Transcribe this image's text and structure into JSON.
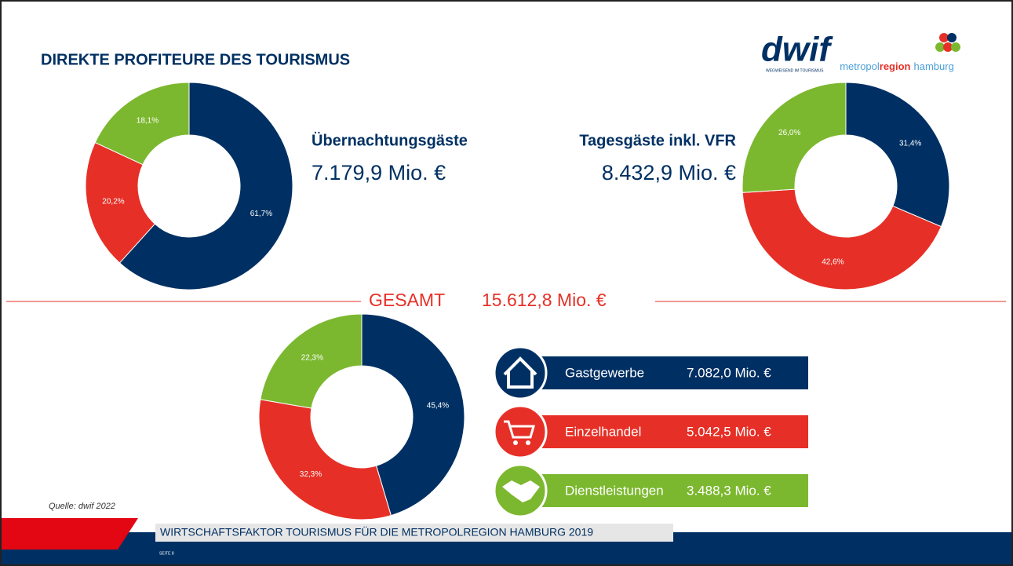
{
  "header": {
    "title": "DIREKTE PROFITEURE DES TOURISMUS",
    "logo_text": "dwif",
    "logo_tagline": "WEGWEISEND IM TOURISMUS",
    "partner_logo": [
      "metropol",
      "region",
      "hamburg"
    ]
  },
  "chart_data": [
    {
      "type": "donut",
      "title": "Übernachtungsgäste",
      "subtitle": "7.179,9 Mio. €",
      "values": [
        61.7,
        20.2,
        18.1
      ],
      "value_labels": [
        "61,7%",
        "20,2%",
        "18,1%"
      ],
      "colors": [
        "#003063",
        "#e63027",
        "#7cb82f"
      ]
    },
    {
      "type": "donut",
      "title": "Tagesgäste inkl. VFR",
      "subtitle": "8.432,9 Mio. €",
      "values": [
        31.4,
        42.6,
        26.0
      ],
      "value_labels": [
        "31,4%",
        "42,6%",
        "26,0%"
      ],
      "colors": [
        "#003063",
        "#e63027",
        "#7cb82f"
      ]
    },
    {
      "type": "donut",
      "title": "GESAMT",
      "subtitle": "15.612,8 Mio. €",
      "values": [
        45.4,
        32.3,
        22.3
      ],
      "value_labels": [
        "45,4%",
        "32,3%",
        "22,3%"
      ],
      "colors": [
        "#003063",
        "#e63027",
        "#7cb82f"
      ]
    }
  ],
  "legend": {
    "items": [
      {
        "name": "Gastgewerbe",
        "amount": "7.082,0 Mio. €"
      },
      {
        "name": "Einzelhandel",
        "amount": "5.042,5 Mio. €"
      },
      {
        "name": "Dienstleistungen",
        "amount": "3.488,3 Mio. €"
      }
    ]
  },
  "footer": {
    "source": "Quelle: dwif 2022",
    "banner": "WIRTSCHAFTSFAKTOR TOURISMUS FÜR DIE METROPOLREGION HAMBURG 2019",
    "page": "SEITE 8"
  }
}
